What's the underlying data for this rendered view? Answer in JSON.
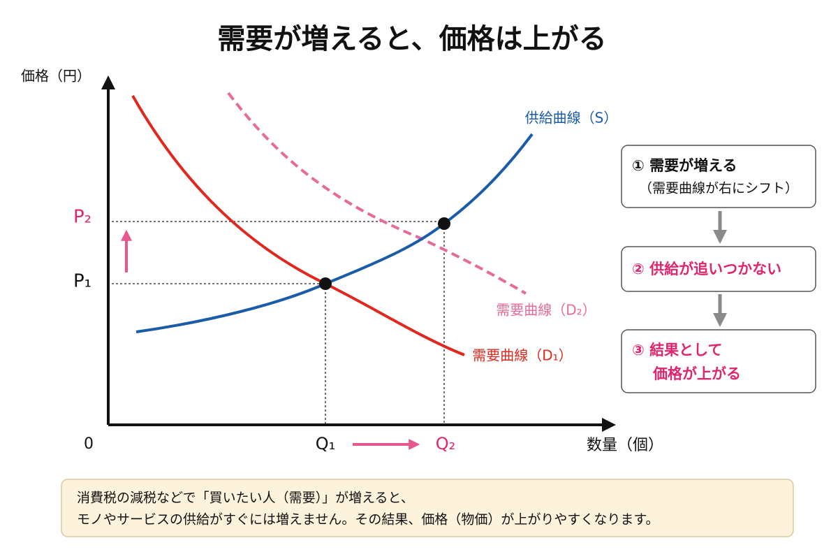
{
  "header": {
    "title": "需要が増えると、価格は上がる"
  },
  "axes": {
    "y_label": "価格（円）",
    "x_label": "数量（個）",
    "origin": "0",
    "price_labels": [
      "P₂",
      "P₁"
    ],
    "quantity_labels": [
      "Q₁",
      "Q₂"
    ]
  },
  "curves": {
    "supply": "供給曲線（S）",
    "demand_new": "需要曲線（D₂）",
    "demand_old": "需要曲線（D₁）"
  },
  "steps": [
    {
      "lines": [
        "① 需要が増える",
        "（需要曲線が右にシフト）"
      ]
    },
    {
      "lines": [
        "② 供給が追いつかない"
      ]
    },
    {
      "lines": [
        "③ 結果として",
        "価格が上がる"
      ]
    }
  ],
  "note": {
    "lines": [
      "消費税の減税などで「買いたい人（需要）」が増えると、",
      "モノやサービスの供給がすぐには増えません。その結果、価格（物価）が上がりやすくなります。"
    ]
  }
}
